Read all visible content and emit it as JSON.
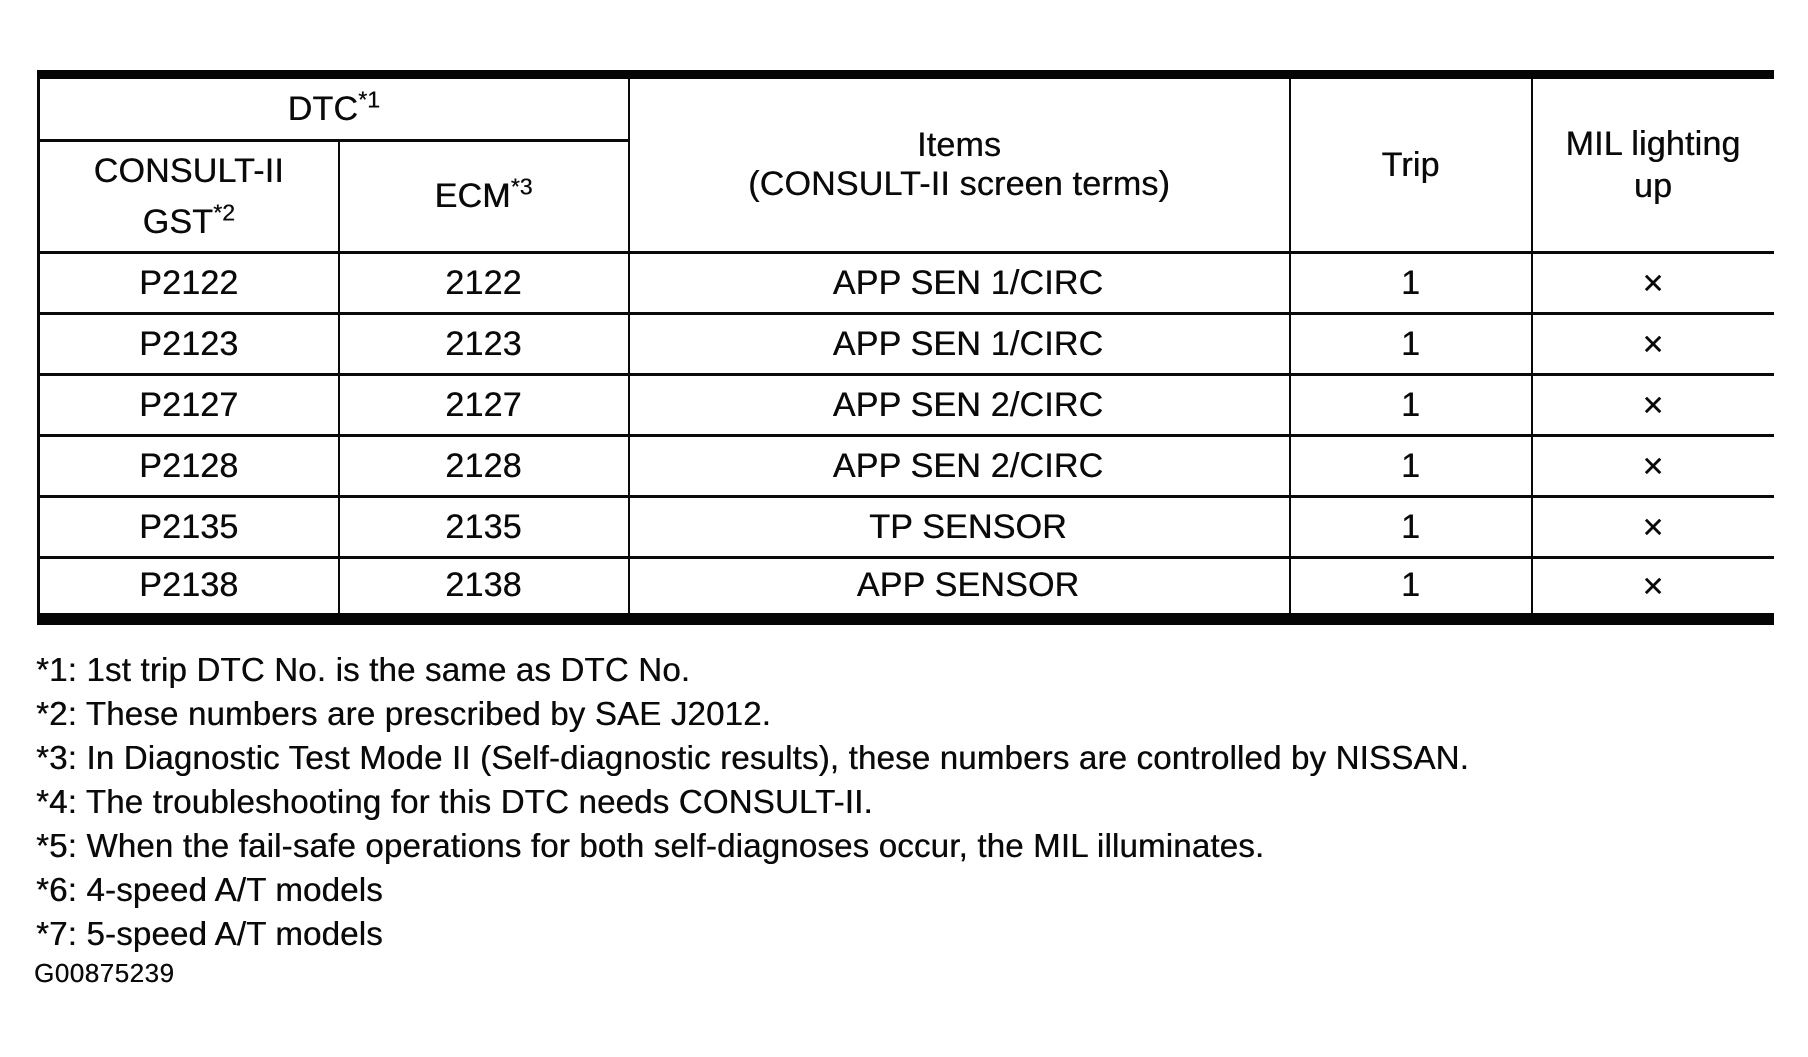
{
  "table": {
    "header": {
      "dtc_base": "DTC",
      "dtc_sup": "*1",
      "gst_line1": "CONSULT-II",
      "gst_line2_base": "GST",
      "gst_line2_sup": "*2",
      "ecm_base": "ECM",
      "ecm_sup": "*3",
      "items_line1": "Items",
      "items_line2": "(CONSULT-II screen terms)",
      "trip": "Trip",
      "mil": "MIL lighting up"
    },
    "rows": [
      {
        "gst": "P2122",
        "ecm": "2122",
        "item": "APP SEN 1/CIRC",
        "trip": "1",
        "mil": "×"
      },
      {
        "gst": "P2123",
        "ecm": "2123",
        "item": "APP SEN 1/CIRC",
        "trip": "1",
        "mil": "×"
      },
      {
        "gst": "P2127",
        "ecm": "2127",
        "item": "APP SEN 2/CIRC",
        "trip": "1",
        "mil": "×"
      },
      {
        "gst": "P2128",
        "ecm": "2128",
        "item": "APP SEN 2/CIRC",
        "trip": "1",
        "mil": "×"
      },
      {
        "gst": "P2135",
        "ecm": "2135",
        "item": "TP SENSOR",
        "trip": "1",
        "mil": "×"
      },
      {
        "gst": "P2138",
        "ecm": "2138",
        "item": "APP SENSOR",
        "trip": "1",
        "mil": "×"
      }
    ]
  },
  "footnotes": [
    "*1: 1st trip DTC No. is the same as DTC No.",
    "*2: These numbers are prescribed by SAE J2012.",
    "*3: In Diagnostic Test Mode II (Self-diagnostic results), these numbers are controlled by NISSAN.",
    "*4: The troubleshooting for this DTC needs CONSULT-II.",
    "*5: When the fail-safe operations for both self-diagnoses occur, the MIL illuminates.",
    "*6: 4-speed A/T models",
    "*7: 5-speed A/T models"
  ],
  "figure_id": "G00875239"
}
